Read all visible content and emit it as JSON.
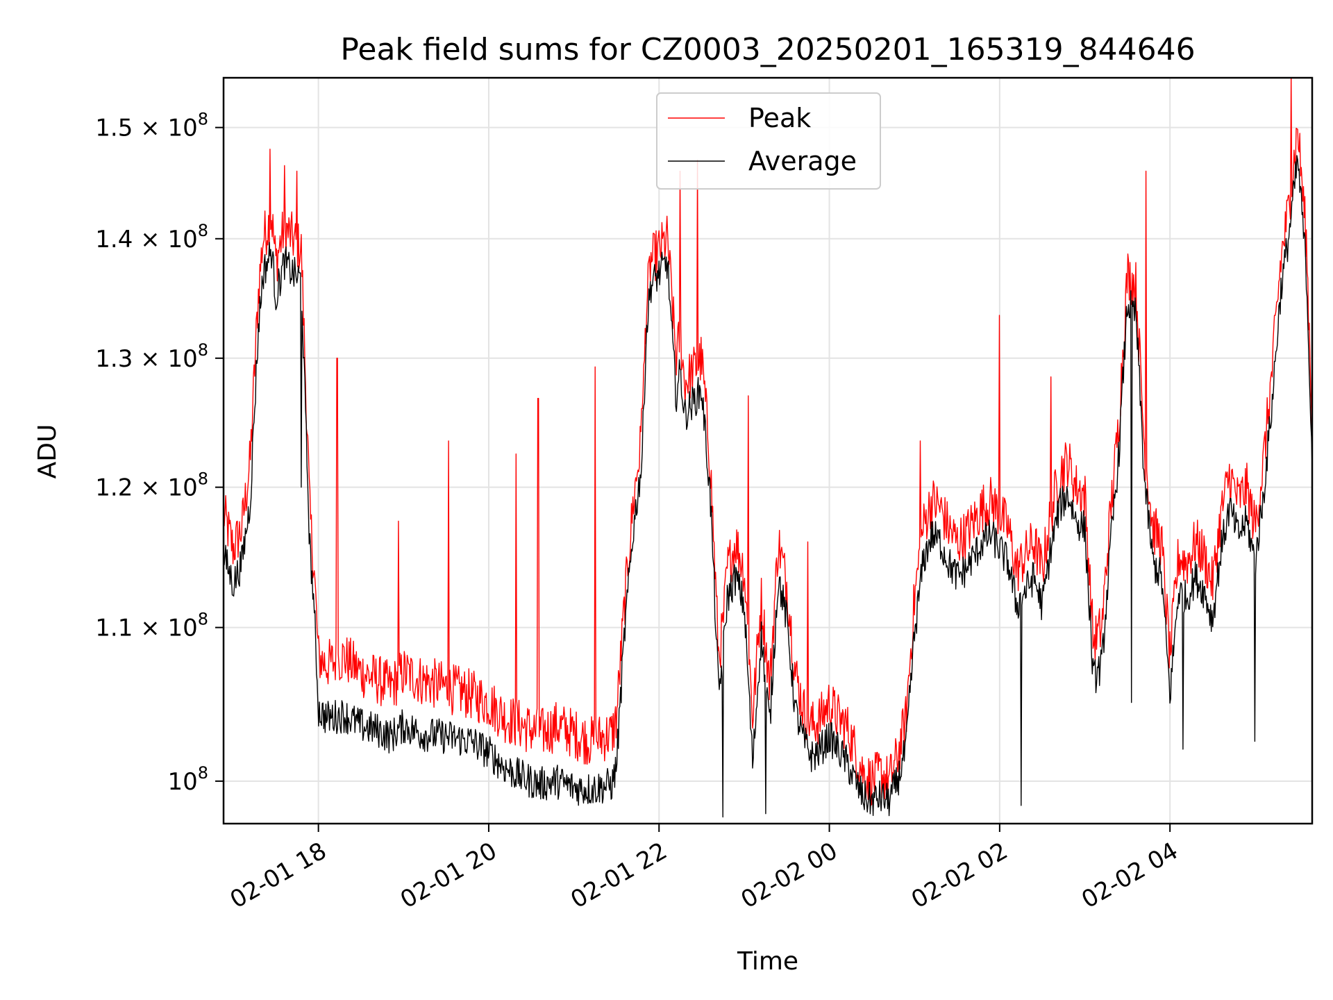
{
  "chart_data": {
    "type": "line",
    "title": "Peak field sums for CZ0003_20250201_165319_844646",
    "xlabel": "Time",
    "ylabel": "ADU",
    "x_unit": "hours since 2025-02-01 00:00",
    "xlim": [
      16.886,
      29.67
    ],
    "ylim": [
      97400000,
      154700000
    ],
    "y_scale": "log",
    "grid": true,
    "legend_position": "upper center",
    "x_ticks": [
      {
        "value": 18,
        "label": "02-01 18"
      },
      {
        "value": 20,
        "label": "02-01 20"
      },
      {
        "value": 22,
        "label": "02-01 22"
      },
      {
        "value": 24,
        "label": "02-02 00"
      },
      {
        "value": 26,
        "label": "02-02 02"
      },
      {
        "value": 28,
        "label": "02-02 04"
      }
    ],
    "y_ticks": [
      {
        "value": 100000000,
        "mantissa": "",
        "exp": "8"
      },
      {
        "value": 110000000,
        "mantissa": "1.1",
        "exp": "8"
      },
      {
        "value": 120000000,
        "mantissa": "1.2",
        "exp": "8"
      },
      {
        "value": 130000000,
        "mantissa": "1.3",
        "exp": "8"
      },
      {
        "value": 140000000,
        "mantissa": "1.4",
        "exp": "8"
      },
      {
        "value": 150000000,
        "mantissa": "1.5",
        "exp": "8"
      }
    ],
    "series": [
      {
        "name": "Peak",
        "color": "#ff0000",
        "x": [
          16.89,
          17.0,
          17.1,
          17.2,
          17.3,
          17.35,
          17.45,
          17.5,
          17.6,
          17.7,
          17.8,
          17.85,
          17.9,
          17.95,
          18.0,
          18.1,
          18.3,
          18.5,
          18.7,
          18.85,
          19.0,
          19.2,
          19.5,
          19.8,
          20.0,
          20.2,
          20.4,
          20.6,
          20.8,
          21.0,
          21.2,
          21.45,
          21.5,
          21.6,
          21.7,
          21.8,
          21.85,
          21.9,
          22.0,
          22.1,
          22.15,
          22.2,
          22.25,
          22.3,
          22.4,
          22.5,
          22.6,
          22.7,
          22.75,
          22.8,
          22.9,
          23.0,
          23.1,
          23.2,
          23.3,
          23.4,
          23.5,
          23.6,
          23.7,
          23.8,
          23.9,
          24.0,
          24.1,
          24.2,
          24.3,
          24.4,
          24.5,
          24.6,
          24.7,
          24.8,
          24.9,
          25.0,
          25.1,
          25.2,
          25.3,
          25.4,
          25.5,
          25.6,
          25.7,
          25.8,
          25.9,
          26.0,
          26.1,
          26.2,
          26.3,
          26.4,
          26.5,
          26.6,
          26.7,
          26.8,
          26.9,
          27.0,
          27.1,
          27.2,
          27.3,
          27.4,
          27.5,
          27.6,
          27.7,
          27.8,
          27.9,
          28.0,
          28.1,
          28.2,
          28.3,
          28.4,
          28.5,
          28.6,
          28.7,
          28.8,
          28.9,
          29.0,
          29.1,
          29.2,
          29.3,
          29.4,
          29.5,
          29.6,
          29.67
        ],
        "y": [
          118000000,
          115500000,
          117000000,
          122000000,
          136000000,
          140000000,
          142000000,
          138000000,
          141000000,
          140000000,
          139000000,
          128000000,
          118000000,
          114000000,
          108000000,
          107500000,
          108000000,
          107000000,
          106500000,
          106000000,
          107000000,
          106500000,
          106000000,
          105500000,
          105000000,
          104000000,
          103500000,
          103000000,
          103500000,
          103000000,
          102500000,
          103000000,
          104000000,
          112000000,
          119000000,
          124000000,
          134000000,
          138000000,
          139000000,
          140000000,
          135000000,
          130000000,
          132000000,
          128000000,
          129000000,
          130000000,
          122000000,
          108000000,
          110000000,
          114000000,
          116000000,
          114000000,
          104000000,
          112000000,
          106000000,
          116000000,
          113000000,
          107000000,
          104500000,
          103500000,
          104000000,
          105000000,
          104000000,
          103500000,
          102000000,
          100500000,
          100000000,
          100500000,
          100000000,
          101500000,
          104000000,
          112000000,
          117000000,
          119000000,
          118500000,
          117000000,
          116000000,
          116500000,
          117500000,
          118500000,
          119000000,
          118000000,
          117000000,
          114000000,
          115000000,
          116000000,
          114000000,
          118000000,
          121000000,
          122000000,
          120000000,
          119500000,
          109000000,
          110000000,
          118000000,
          125000000,
          137000000,
          136000000,
          123000000,
          117000000,
          116000000,
          108000000,
          115000000,
          114500000,
          116000000,
          115000000,
          113000000,
          118000000,
          121000000,
          119000000,
          120000000,
          117000000,
          122000000,
          129000000,
          138000000,
          143000000,
          150000000,
          140000000,
          125000000
        ],
        "spikes": [
          [
            17.43,
            148000000
          ],
          [
            17.6,
            146500000
          ],
          [
            17.75,
            146000000
          ],
          [
            18.22,
            130000000
          ],
          [
            18.94,
            117500000
          ],
          [
            19.53,
            123500000
          ],
          [
            20.32,
            122500000
          ],
          [
            20.58,
            126800000
          ],
          [
            21.25,
            129300000
          ],
          [
            21.8,
            126000000
          ],
          [
            22.25,
            146000000
          ],
          [
            22.45,
            147000000
          ],
          [
            23.05,
            127000000
          ],
          [
            23.75,
            116000000
          ],
          [
            25.07,
            123500000
          ],
          [
            26.0,
            133500000
          ],
          [
            26.6,
            128500000
          ],
          [
            27.72,
            146000000
          ],
          [
            29.42,
            155000000
          ]
        ]
      },
      {
        "name": "Average",
        "color": "#000000",
        "x": [
          16.89,
          17.0,
          17.1,
          17.2,
          17.3,
          17.35,
          17.45,
          17.5,
          17.6,
          17.7,
          17.8,
          17.85,
          17.9,
          17.95,
          18.0,
          18.1,
          18.3,
          18.5,
          18.7,
          18.85,
          19.0,
          19.2,
          19.5,
          19.8,
          20.0,
          20.2,
          20.4,
          20.6,
          20.8,
          21.0,
          21.2,
          21.45,
          21.5,
          21.6,
          21.7,
          21.8,
          21.85,
          21.9,
          22.0,
          22.1,
          22.15,
          22.2,
          22.25,
          22.3,
          22.4,
          22.5,
          22.6,
          22.7,
          22.75,
          22.8,
          22.9,
          23.0,
          23.1,
          23.2,
          23.3,
          23.4,
          23.5,
          23.6,
          23.7,
          23.8,
          23.9,
          24.0,
          24.1,
          24.2,
          24.3,
          24.4,
          24.5,
          24.6,
          24.7,
          24.8,
          24.9,
          25.0,
          25.1,
          25.2,
          25.3,
          25.4,
          25.5,
          25.6,
          25.7,
          25.8,
          25.9,
          26.0,
          26.1,
          26.2,
          26.3,
          26.4,
          26.5,
          26.6,
          26.7,
          26.8,
          26.9,
          27.0,
          27.1,
          27.2,
          27.3,
          27.4,
          27.5,
          27.6,
          27.7,
          27.8,
          27.9,
          28.0,
          28.1,
          28.2,
          28.3,
          28.4,
          28.5,
          28.6,
          28.7,
          28.8,
          28.9,
          29.0,
          29.1,
          29.2,
          29.3,
          29.4,
          29.5,
          29.6,
          29.67
        ],
        "y": [
          115000000,
          113000000,
          114500000,
          119000000,
          133000000,
          137000000,
          139000000,
          135000000,
          138000000,
          137000000,
          136500000,
          125000000,
          115500000,
          111500000,
          104500000,
          104000000,
          104200000,
          103500000,
          103200000,
          102800000,
          103500000,
          103000000,
          102800000,
          102500000,
          101800000,
          100800000,
          100200000,
          99800000,
          100000000,
          99600000,
          99500000,
          99800000,
          101000000,
          110000000,
          117000000,
          122000000,
          132000000,
          136000000,
          137000000,
          138000000,
          132000000,
          127000000,
          129000000,
          125500000,
          126500000,
          127500000,
          119500000,
          105500000,
          108000000,
          112000000,
          113500000,
          111500000,
          101000000,
          109500000,
          103500000,
          113500000,
          110500000,
          104500000,
          102500000,
          101500000,
          102000000,
          102800000,
          102000000,
          101200000,
          100000000,
          99000000,
          98800000,
          99000000,
          98800000,
          100000000,
          102000000,
          109500000,
          114500000,
          116500000,
          116000000,
          114500000,
          113500000,
          114000000,
          115000000,
          116000000,
          116500000,
          115500000,
          114500000,
          111500000,
          112500000,
          113500000,
          111500000,
          115500000,
          118500000,
          119500000,
          117500000,
          117000000,
          106500000,
          107500000,
          115500000,
          122500000,
          134500000,
          133500000,
          120500000,
          114500000,
          113500000,
          105500000,
          112500000,
          112000000,
          113500000,
          112500000,
          110500000,
          115500000,
          118500000,
          116500000,
          117500000,
          114500000,
          119500000,
          126500000,
          135500000,
          140500000,
          147000000,
          137500000,
          122000000
        ],
        "spikes": [
          [
            17.8,
            120000000
          ],
          [
            17.95,
            111000000
          ],
          [
            22.75,
            97800000
          ],
          [
            23.25,
            98000000
          ],
          [
            26.25,
            98500000
          ],
          [
            27.55,
            105000000
          ],
          [
            28.15,
            102000000
          ],
          [
            29.0,
            102500000
          ]
        ]
      }
    ]
  }
}
